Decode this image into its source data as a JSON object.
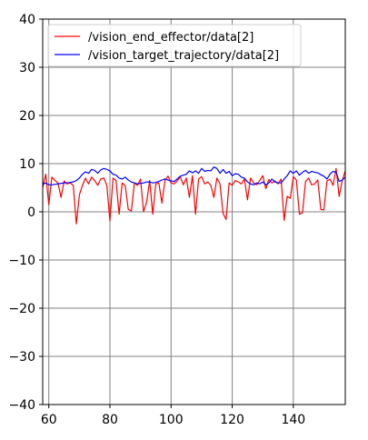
{
  "chart_data": {
    "type": "line",
    "title": "",
    "xlabel": "",
    "ylabel": "",
    "xlim": [
      58,
      157
    ],
    "ylim": [
      -40,
      40
    ],
    "xticks": [
      60,
      80,
      100,
      120,
      140
    ],
    "yticks": [
      -40,
      -30,
      -20,
      -10,
      0,
      10,
      20,
      30,
      40
    ],
    "xtick_labels": [
      "60",
      "80",
      "100",
      "120",
      "140"
    ],
    "ytick_labels": [
      "−40",
      "−30",
      "−20",
      "−10",
      "0",
      "10",
      "20",
      "30",
      "40"
    ],
    "grid": true,
    "legend_position": "top-left",
    "series": [
      {
        "name": "/vision_end_effector/data[2]",
        "color": "#ff0000",
        "x": [
          58,
          59,
          60,
          61,
          62,
          63,
          64,
          65,
          66,
          67,
          68,
          69,
          70,
          71,
          72,
          73,
          74,
          75,
          76,
          77,
          78,
          79,
          80,
          81,
          82,
          83,
          84,
          85,
          86,
          87,
          88,
          89,
          90,
          91,
          92,
          93,
          94,
          95,
          96,
          97,
          98,
          99,
          100,
          101,
          102,
          103,
          104,
          105,
          106,
          107,
          108,
          109,
          110,
          111,
          112,
          113,
          114,
          115,
          116,
          117,
          118,
          119,
          120,
          121,
          122,
          123,
          124,
          125,
          126,
          127,
          128,
          129,
          130,
          131,
          132,
          133,
          134,
          135,
          136,
          137,
          138,
          139,
          140,
          141,
          142,
          143,
          144,
          145,
          146,
          147,
          148,
          149,
          150,
          151,
          152,
          153,
          154,
          155,
          156,
          157
        ],
        "y": [
          5.0,
          7.8,
          1.5,
          7.2,
          6.5,
          6.0,
          3.0,
          6.4,
          5.8,
          6.0,
          5.5,
          -2.5,
          3.5,
          5.5,
          7.0,
          5.8,
          7.2,
          6.5,
          5.5,
          6.8,
          7.0,
          5.5,
          -1.9,
          7.0,
          6.5,
          -0.5,
          6.0,
          5.4,
          0.5,
          0.2,
          6.0,
          5.5,
          6.8,
          0.0,
          2.0,
          6.5,
          -0.5,
          5.8,
          6.0,
          1.8,
          6.5,
          7.4,
          6.0,
          5.8,
          6.4,
          7.3,
          5.6,
          7.0,
          3.0,
          7.5,
          -0.5,
          6.8,
          7.3,
          5.8,
          6.2,
          5.5,
          3.0,
          7.0,
          5.8,
          -0.3,
          -1.6,
          6.0,
          5.5,
          6.5,
          6.2,
          5.8,
          6.8,
          2.5,
          7.0,
          6.0,
          5.6,
          6.5,
          7.5,
          4.8,
          6.7,
          6.0,
          6.4,
          5.8,
          6.8,
          -1.8,
          3.2,
          2.8,
          7.3,
          6.6,
          -0.5,
          -0.2,
          6.3,
          7.0,
          5.6,
          5.8,
          6.6,
          0.5,
          0.4,
          6.4,
          6.8,
          5.5,
          9.0,
          3.2,
          6.5,
          8.5
        ]
      },
      {
        "name": "/vision_target_trajectory/data[2]",
        "color": "#0000ff",
        "x": [
          58,
          59,
          60,
          61,
          62,
          63,
          64,
          65,
          66,
          67,
          68,
          69,
          70,
          71,
          72,
          73,
          74,
          75,
          76,
          77,
          78,
          79,
          80,
          81,
          82,
          83,
          84,
          85,
          86,
          87,
          88,
          89,
          90,
          91,
          92,
          93,
          94,
          95,
          96,
          97,
          98,
          99,
          100,
          101,
          102,
          103,
          104,
          105,
          106,
          107,
          108,
          109,
          110,
          111,
          112,
          113,
          114,
          115,
          116,
          117,
          118,
          119,
          120,
          121,
          122,
          123,
          124,
          125,
          126,
          127,
          128,
          129,
          130,
          131,
          132,
          133,
          134,
          135,
          136,
          137,
          138,
          139,
          140,
          141,
          142,
          143,
          144,
          145,
          146,
          147,
          148,
          149,
          150,
          151,
          152,
          153,
          154,
          155,
          156,
          157
        ],
        "y": [
          5.7,
          6.0,
          5.6,
          5.6,
          5.7,
          5.8,
          5.9,
          6.0,
          6.0,
          6.1,
          6.2,
          6.5,
          7.0,
          7.8,
          8.3,
          8.0,
          8.8,
          8.6,
          8.0,
          8.7,
          9.0,
          8.8,
          8.5,
          7.8,
          7.6,
          7.0,
          6.8,
          7.2,
          6.6,
          6.2,
          6.0,
          5.8,
          5.9,
          6.0,
          6.2,
          6.2,
          6.0,
          6.1,
          6.3,
          6.6,
          6.8,
          6.6,
          6.4,
          6.3,
          6.8,
          7.4,
          7.6,
          7.8,
          8.5,
          8.1,
          8.5,
          8.0,
          9.0,
          8.4,
          8.6,
          8.5,
          9.3,
          9.0,
          8.0,
          8.8,
          8.0,
          8.4,
          7.5,
          7.9,
          7.8,
          7.2,
          7.0,
          6.2,
          5.8,
          5.6,
          6.0,
          5.8,
          6.2,
          5.6,
          6.0,
          6.8,
          6.2,
          6.0,
          6.0,
          6.8,
          7.5,
          8.5,
          8.0,
          8.5,
          7.6,
          8.2,
          8.6,
          8.0,
          8.4,
          8.2,
          8.1,
          7.7,
          7.4,
          6.8,
          7.8,
          8.4,
          8.2,
          6.3,
          6.6,
          7.2
        ]
      }
    ]
  }
}
